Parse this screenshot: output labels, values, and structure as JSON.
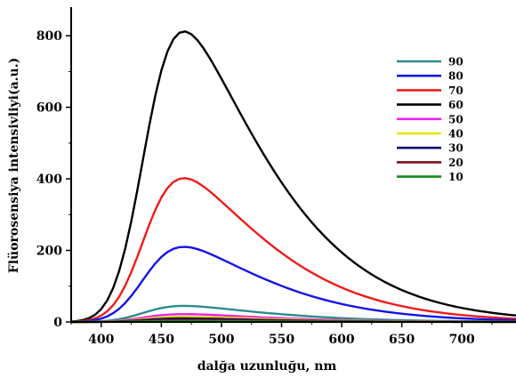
{
  "chart_data": {
    "type": "line",
    "title": "",
    "xlabel": "dalğa uzunluğu, nm",
    "ylabel": "Flüorosensiya intensivliyi(a.u.)",
    "xlim": [
      375,
      745
    ],
    "ylim": [
      0,
      880
    ],
    "x_ticks": [
      400,
      450,
      500,
      550,
      600,
      650,
      700
    ],
    "y_ticks": [
      0,
      200,
      400,
      600,
      800
    ],
    "grid": false,
    "legend_position": "top-right",
    "x": [
      375,
      380,
      385,
      390,
      395,
      400,
      405,
      410,
      415,
      420,
      425,
      430,
      435,
      440,
      445,
      450,
      455,
      460,
      465,
      470,
      475,
      480,
      485,
      490,
      495,
      500,
      505,
      510,
      515,
      520,
      525,
      530,
      535,
      540,
      545,
      550,
      555,
      560,
      565,
      570,
      575,
      580,
      585,
      590,
      595,
      600,
      605,
      610,
      615,
      620,
      625,
      630,
      635,
      640,
      645,
      650,
      655,
      660,
      665,
      670,
      675,
      680,
      685,
      690,
      695,
      700,
      705,
      710,
      715,
      720,
      725,
      730,
      735,
      740,
      745
    ],
    "base_shape": [
      0.0012,
      0.0027,
      0.0057,
      0.0113,
      0.0209,
      0.0368,
      0.0613,
      0.0971,
      0.1462,
      0.2097,
      0.2867,
      0.3743,
      0.4676,
      0.56,
      0.6446,
      0.7156,
      0.7694,
      0.8048,
      0.8233,
      0.827,
      0.819,
      0.8022,
      0.7793,
      0.7525,
      0.7232,
      0.6925,
      0.6611,
      0.6295,
      0.598,
      0.567,
      0.5365,
      0.5068,
      0.4779,
      0.45,
      0.423,
      0.3971,
      0.3723,
      0.3486,
      0.326,
      0.3045,
      0.2841,
      0.2648,
      0.2466,
      0.2294,
      0.2132,
      0.198,
      0.1837,
      0.1703,
      0.1578,
      0.1461,
      0.1352,
      0.125,
      0.1155,
      0.1067,
      0.0985,
      0.0909,
      0.0839,
      0.0774,
      0.0713,
      0.0657,
      0.0605,
      0.0557,
      0.0513,
      0.0472,
      0.0434,
      0.0399,
      0.0367,
      0.0337,
      0.031,
      0.0285,
      0.0261,
      0.024,
      0.022,
      0.0202,
      0.0185
    ],
    "series": [
      {
        "name": "90",
        "color": "#2e8b8b",
        "peak": 45
      },
      {
        "name": "80",
        "color": "#1414e6",
        "peak": 210
      },
      {
        "name": "70",
        "color": "#ee1c1c",
        "peak": 402
      },
      {
        "name": "60",
        "color": "#000000",
        "peak": 812
      },
      {
        "name": "50",
        "color": "#ee22ee",
        "peak": 22
      },
      {
        "name": "40",
        "color": "#e6e600",
        "peak": 15
      },
      {
        "name": "30",
        "color": "#0a0a6e",
        "peak": 10
      },
      {
        "name": "20",
        "color": "#7a0f1e",
        "peak": 6
      },
      {
        "name": "10",
        "color": "#138a13",
        "peak": 3
      }
    ]
  }
}
